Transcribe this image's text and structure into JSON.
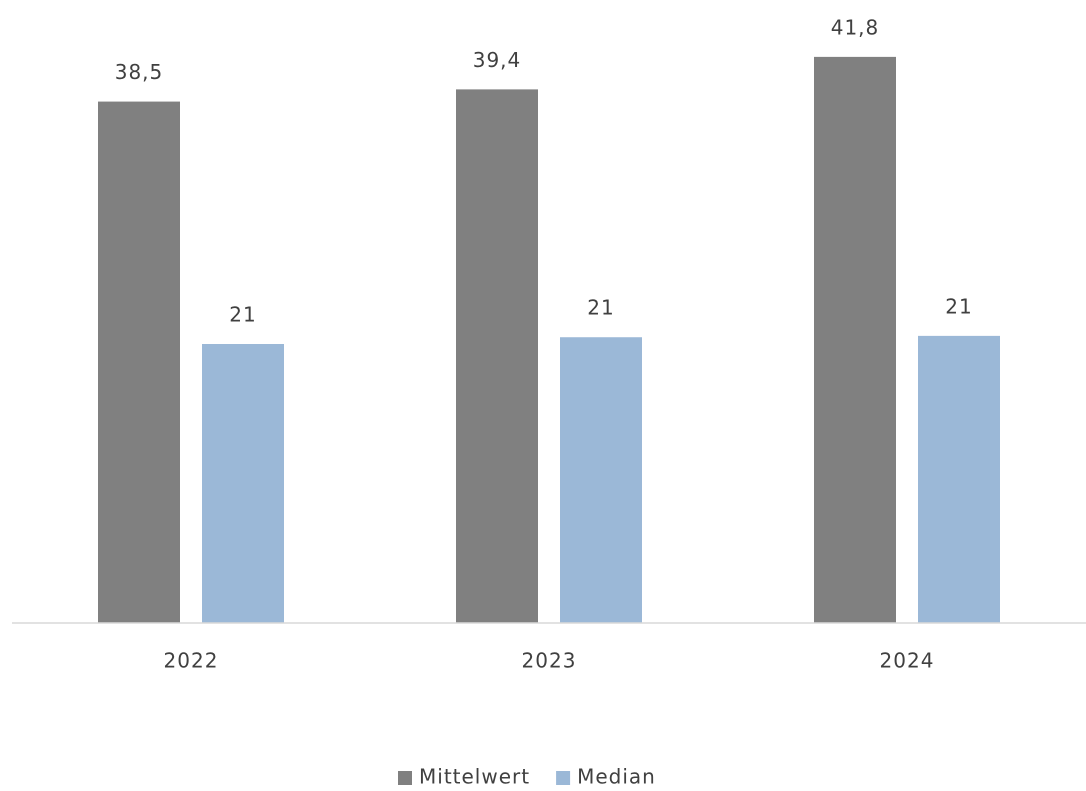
{
  "chart_data": {
    "type": "bar",
    "categories": [
      "2022",
      "2023",
      "2024"
    ],
    "series": [
      {
        "name": "Mittelwert",
        "color": "#808080",
        "values": [
          38.5,
          39.4,
          41.8
        ],
        "value_labels": [
          "38,5",
          "39,4",
          "41,8"
        ]
      },
      {
        "name": "Median",
        "color": "#9bb8d7",
        "values": [
          20.6,
          21.1,
          21.2
        ],
        "value_labels": [
          "21",
          "21",
          "21"
        ]
      }
    ],
    "ylim": [
      0,
      46
    ],
    "legend": "bottom"
  }
}
